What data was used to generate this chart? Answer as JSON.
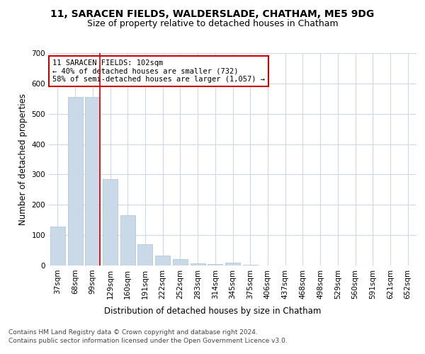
{
  "title1": "11, SARACEN FIELDS, WALDERSLADE, CHATHAM, ME5 9DG",
  "title2": "Size of property relative to detached houses in Chatham",
  "xlabel": "Distribution of detached houses by size in Chatham",
  "ylabel": "Number of detached properties",
  "footer1": "Contains HM Land Registry data © Crown copyright and database right 2024.",
  "footer2": "Contains public sector information licensed under the Open Government Licence v3.0.",
  "annotation_title": "11 SARACEN FIELDS: 102sqm",
  "annotation_line1": "← 40% of detached houses are smaller (732)",
  "annotation_line2": "58% of semi-detached houses are larger (1,057) →",
  "bar_color": "#c9d9e8",
  "bar_edge_color": "#a8c4d8",
  "marker_line_color": "#cc0000",
  "annotation_box_color": "#cc0000",
  "bg_color": "#ffffff",
  "grid_color": "#cdd8e8",
  "categories": [
    "37sqm",
    "68sqm",
    "99sqm",
    "129sqm",
    "160sqm",
    "191sqm",
    "222sqm",
    "252sqm",
    "283sqm",
    "314sqm",
    "345sqm",
    "375sqm",
    "406sqm",
    "437sqm",
    "468sqm",
    "498sqm",
    "529sqm",
    "560sqm",
    "591sqm",
    "621sqm",
    "652sqm"
  ],
  "values": [
    128,
    556,
    556,
    285,
    165,
    70,
    33,
    20,
    7,
    4,
    10,
    2,
    0,
    0,
    0,
    0,
    0,
    0,
    0,
    0,
    0
  ],
  "ylim": [
    0,
    700
  ],
  "yticks": [
    0,
    100,
    200,
    300,
    400,
    500,
    600,
    700
  ],
  "marker_bar_index": 2,
  "title_fontsize": 10,
  "subtitle_fontsize": 9,
  "tick_fontsize": 7.5,
  "axis_label_fontsize": 8.5,
  "footer_fontsize": 6.5
}
